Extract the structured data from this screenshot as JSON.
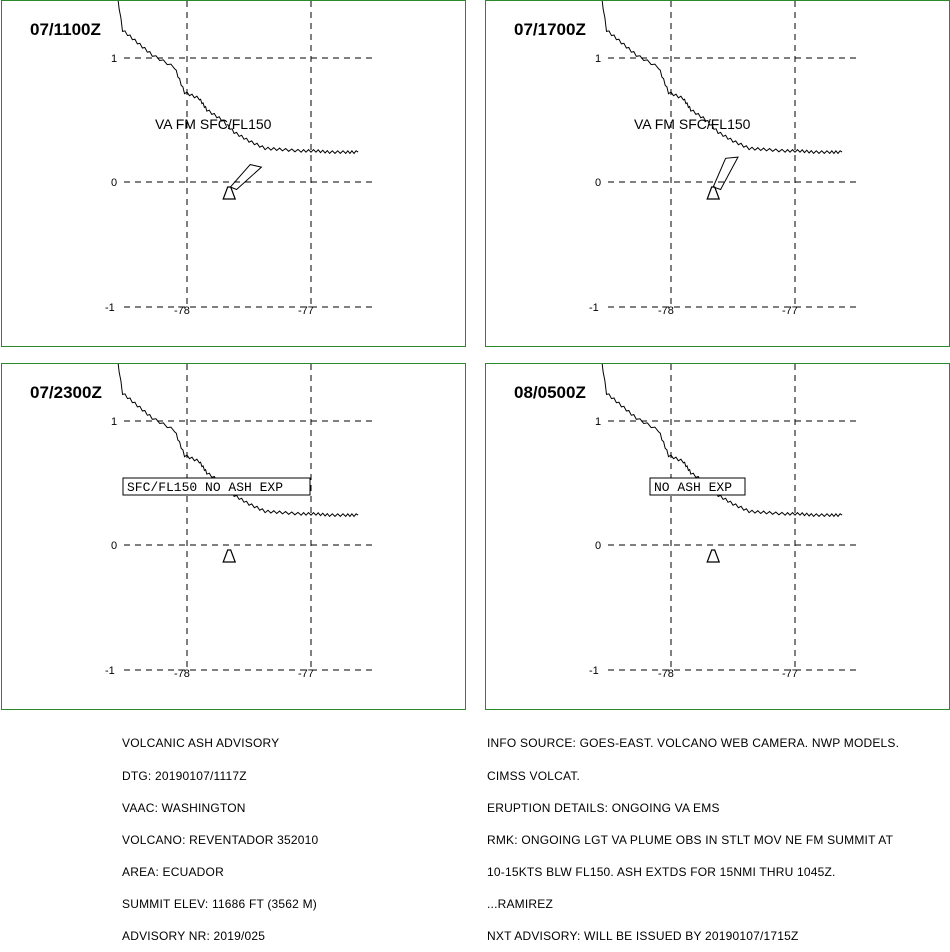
{
  "panels": [
    {
      "time": "07/1100Z",
      "ticks": {
        "lat_top": "1",
        "lat_mid": "0",
        "lat_bot": "-1",
        "lon_left": "-78",
        "lon_right": "-77"
      },
      "label": "VA FM SFC/FL150",
      "label_style": "plain",
      "ash_polygon": [
        [
          -77.6,
          -0.06
        ],
        [
          -77.4,
          0.12
        ],
        [
          -77.49,
          0.14
        ],
        [
          -77.65,
          -0.04
        ]
      ]
    },
    {
      "time": "07/1700Z",
      "ticks": {
        "lat_top": "1",
        "lat_mid": "0",
        "lat_bot": "-1",
        "lon_left": "-78",
        "lon_right": "-77"
      },
      "label": "VA FM SFC/FL150",
      "label_style": "plain",
      "ash_polygon": [
        [
          -77.6,
          -0.06
        ],
        [
          -77.46,
          0.2
        ],
        [
          -77.56,
          0.19
        ],
        [
          -77.66,
          -0.04
        ]
      ]
    },
    {
      "time": "07/2300Z",
      "ticks": {
        "lat_top": "1",
        "lat_mid": "0",
        "lat_bot": "-1",
        "lon_left": "-78",
        "lon_right": "-77"
      },
      "label": "SFC/FL150 NO ASH EXP",
      "label_style": "boxed",
      "ash_polygon": []
    },
    {
      "time": "08/0500Z",
      "ticks": {
        "lat_top": "1",
        "lat_mid": "0",
        "lat_bot": "-1",
        "lon_left": "-78",
        "lon_right": "-77"
      },
      "label": "NO ASH EXP",
      "label_style": "boxed",
      "ash_polygon": []
    }
  ],
  "volcano": {
    "lon": -77.66,
    "lat": -0.08
  },
  "coastline": [
    [
      -78.6,
      1.75
    ],
    [
      -78.52,
      1.22
    ],
    [
      -78.4,
      1.12
    ],
    [
      -78.28,
      1.02
    ],
    [
      -78.1,
      0.92
    ],
    [
      -78.02,
      0.72
    ],
    [
      -77.9,
      0.67
    ],
    [
      -77.84,
      0.58
    ],
    [
      -77.72,
      0.5
    ],
    [
      -77.62,
      0.4
    ],
    [
      -77.5,
      0.33
    ],
    [
      -77.37,
      0.27
    ],
    [
      -77.23,
      0.26
    ],
    [
      -77.08,
      0.25
    ],
    [
      -76.96,
      0.25
    ],
    [
      -76.85,
      0.24
    ],
    [
      -76.72,
      0.24
    ],
    [
      -76.62,
      0.24
    ]
  ],
  "advisory_left": [
    "VOLCANIC ASH ADVISORY",
    "DTG: 20190107/1117Z",
    "VAAC: WASHINGTON",
    "VOLCANO: REVENTADOR 352010",
    "AREA: ECUADOR",
    "SUMMIT ELEV: 11686 FT (3562 M)",
    "ADVISORY NR: 2019/025"
  ],
  "advisory_right": [
    "INFO SOURCE: GOES-EAST. VOLCANO WEB CAMERA. NWP MODELS.",
    "CIMSS VOLCAT.",
    "ERUPTION DETAILS: ONGOING VA EMS",
    "RMK: ONGOING LGT VA PLUME OBS IN STLT MOV NE FM SUMMIT AT",
    "10-15KTS BLW FL150. ASH EXTDS FOR 15NMI THRU 1045Z.",
    "...RAMIREZ",
    "NXT ADVISORY: WILL BE ISSUED BY 20190107/1715Z"
  ]
}
